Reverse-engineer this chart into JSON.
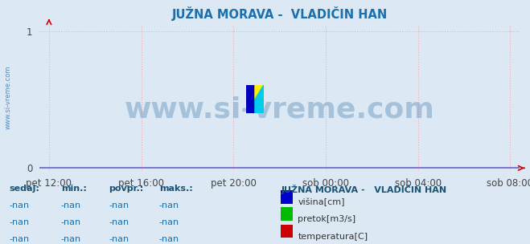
{
  "title": "JUŽNA MORAVA -  VLADIČIN HAN",
  "title_color": "#1a6faf",
  "background_color": "#dce9f5",
  "plot_bg_color": "#dce9f5",
  "grid_color": "#ffaaaa",
  "axis_bottom_color": "#6666cc",
  "axis_arrow_color": "#cc0000",
  "yticks": [
    0,
    1
  ],
  "ylim": [
    -0.02,
    1.05
  ],
  "xtick_labels": [
    "pet 12:00",
    "pet 16:00",
    "pet 20:00",
    "sob 00:00",
    "sob 04:00",
    "sob 08:00"
  ],
  "xtick_positions": [
    0.0,
    0.2,
    0.4,
    0.6,
    0.8,
    1.0
  ],
  "watermark": "www.si-vreme.com",
  "watermark_color": "#1a5f9a",
  "side_label": "www.si-vreme.com",
  "legend_title": "JUŽNA MORAVA -   VLADIČIN HAN",
  "legend_items": [
    {
      "label": "višina[cm]",
      "color": "#0000cc"
    },
    {
      "label": "pretok[m3/s]",
      "color": "#00bb00"
    },
    {
      "label": "temperatura[C]",
      "color": "#cc0000"
    }
  ],
  "table_headers": [
    "sedaj:",
    "min.:",
    "povpr.:",
    "maks.:"
  ],
  "table_rows": [
    [
      "-nan",
      "-nan",
      "-nan",
      "-nan"
    ],
    [
      "-nan",
      "-nan",
      "-nan",
      "-nan"
    ],
    [
      "-nan",
      "-nan",
      "-nan",
      "-nan"
    ]
  ],
  "tick_fontsize": 8.5,
  "title_fontsize": 10.5,
  "table_fontsize": 8,
  "watermark_fontsize": 26
}
